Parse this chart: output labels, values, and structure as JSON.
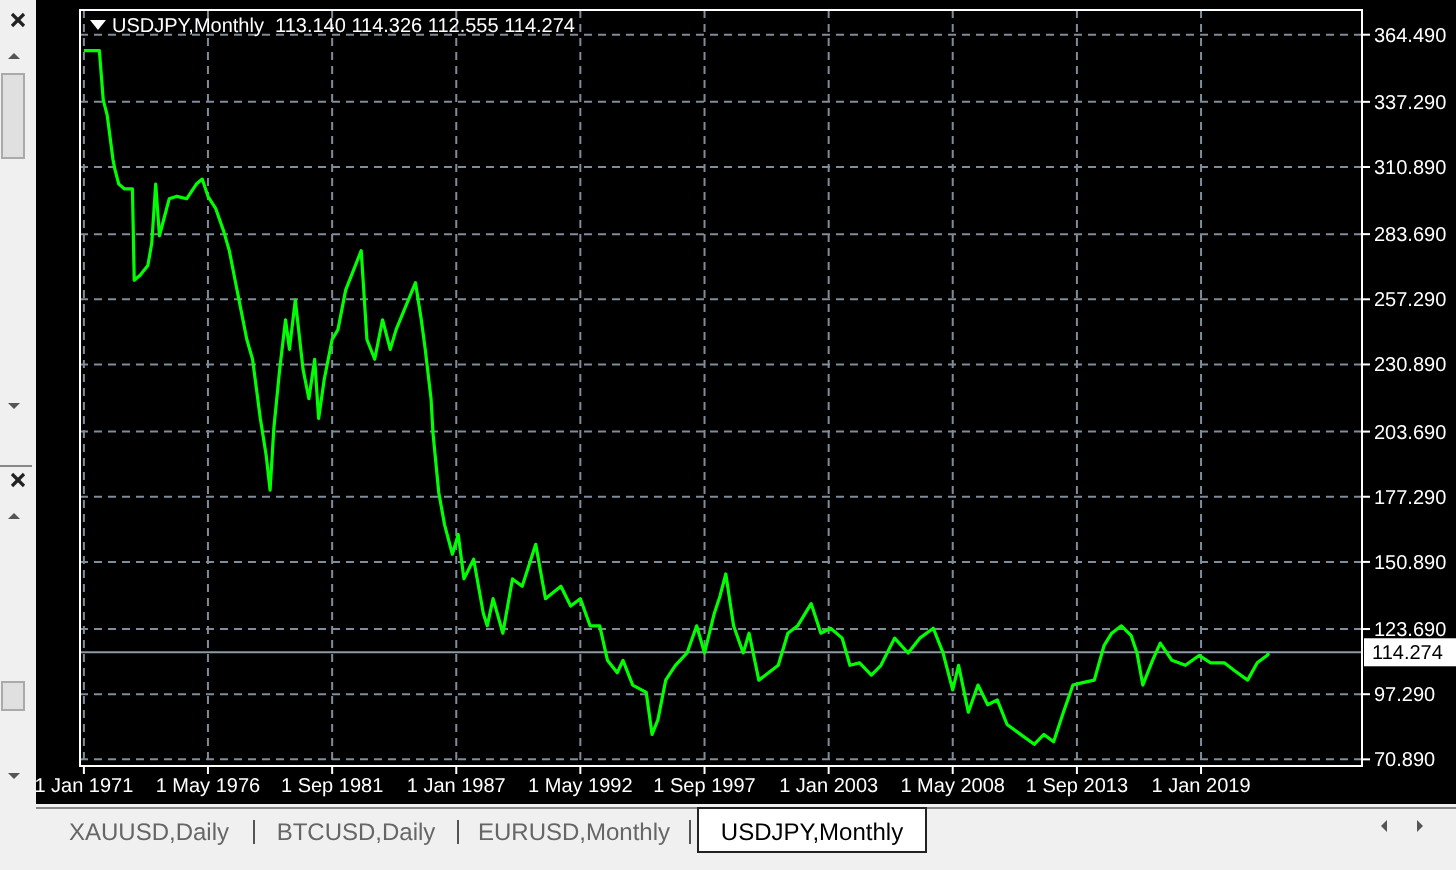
{
  "chart_data": {
    "type": "line",
    "title": "USDJPY,Monthly  113.140 114.326 112.555 114.274",
    "x": [
      "1971-01",
      "1971-09",
      "1971-11",
      "1972-01",
      "1972-02",
      "1972-04",
      "1972-05",
      "1972-07",
      "1972-10",
      "1973-02",
      "1973-03",
      "1973-06",
      "1973-10",
      "1973-12",
      "1974-02",
      "1974-04",
      "1974-06",
      "1974-09",
      "1975-01",
      "1975-06",
      "1975-11",
      "1976-02",
      "1976-05",
      "1976-09",
      "1977-01",
      "1977-04",
      "1977-07",
      "1977-10",
      "1978-01",
      "1978-04",
      "1978-06",
      "1978-08",
      "1978-11",
      "1979-01",
      "1979-03",
      "1979-06",
      "1979-09",
      "1979-11",
      "1980-02",
      "1980-06",
      "1980-09",
      "1980-12",
      "1981-02",
      "1981-05",
      "1981-09",
      "1981-12",
      "1982-04",
      "1982-12",
      "1983-03",
      "1983-07",
      "1983-11",
      "1984-03",
      "1984-06",
      "1985-04",
      "1985-07",
      "1985-09",
      "1985-12",
      "1986-01",
      "1986-04",
      "1986-07",
      "1986-11",
      "1987-02",
      "1987-05",
      "1987-10",
      "1988-03",
      "1988-05",
      "1988-08",
      "1989-01",
      "1989-06",
      "1989-11",
      "1990-06",
      "1990-11",
      "1991-07",
      "1991-12",
      "1992-05",
      "1992-10",
      "1993-03",
      "1993-07",
      "1993-12",
      "1994-03",
      "1994-08",
      "1995-03",
      "1995-06",
      "1995-09",
      "1996-01",
      "1996-06",
      "1996-12",
      "1997-05",
      "1997-09",
      "1998-02",
      "1998-05",
      "1998-08",
      "1998-12",
      "1999-05",
      "1999-08",
      "2000-01",
      "2000-06",
      "2000-11",
      "2001-04",
      "2001-09",
      "2002-04",
      "2002-09",
      "2003-02",
      "2003-08",
      "2003-12",
      "2004-05",
      "2004-11",
      "2005-04",
      "2005-11",
      "2006-06",
      "2006-12",
      "2007-07",
      "2007-12",
      "2008-05",
      "2008-08",
      "2009-01",
      "2009-06",
      "2009-11",
      "2010-04",
      "2010-09",
      "2011-04",
      "2011-11",
      "2012-04",
      "2012-09",
      "2013-02",
      "2013-07",
      "2013-12",
      "2014-06",
      "2014-11",
      "2015-03",
      "2015-08",
      "2016-01",
      "2016-04",
      "2016-07",
      "2016-12",
      "2017-04",
      "2017-10",
      "2018-05",
      "2018-12",
      "2019-06",
      "2020-01",
      "2020-06",
      "2021-01",
      "2021-06",
      "2021-11",
      "2021-12"
    ],
    "series": [
      {
        "color": "#00ff00",
        "values": [
          358,
          358,
          338,
          332,
          326,
          314,
          310,
          304,
          302,
          302,
          265,
          267,
          271,
          280,
          304,
          283,
          289,
          298,
          299,
          298,
          304,
          306,
          299,
          294,
          285,
          277,
          265,
          253,
          241,
          233,
          221,
          209,
          194,
          180,
          205,
          229,
          249,
          237,
          257,
          229,
          217,
          233,
          209,
          225,
          241,
          245,
          261,
          277,
          241,
          233,
          249,
          237,
          245,
          264,
          249,
          237,
          217,
          203,
          179,
          166,
          154,
          162,
          144,
          152,
          130,
          125,
          136,
          122,
          144,
          141,
          158,
          136,
          141,
          133,
          136,
          125,
          125,
          111,
          106,
          111,
          101,
          98,
          81,
          87,
          103,
          109,
          114,
          125,
          114,
          130,
          137,
          146,
          125,
          114,
          122,
          103,
          106,
          109,
          122,
          125,
          134,
          122,
          124,
          120,
          109,
          110,
          105,
          109,
          120,
          114,
          120,
          124,
          114,
          99,
          109,
          90,
          101,
          93,
          95,
          85,
          81,
          77,
          81,
          78,
          90,
          101,
          102,
          103,
          117,
          122,
          125,
          121,
          114,
          101,
          111,
          118,
          111,
          109,
          113,
          110,
          110,
          107,
          103,
          110,
          113,
          114
        ]
      }
    ],
    "xlim": [
      "1970-11",
      "2025-12"
    ],
    "xticks": [
      {
        "value": "1971-01",
        "label": "1 Jan 1971"
      },
      {
        "value": "1976-05",
        "label": "1 May 1976"
      },
      {
        "value": "1981-09",
        "label": "1 Sep 1981"
      },
      {
        "value": "1987-01",
        "label": "1 Jan 1987"
      },
      {
        "value": "1992-05",
        "label": "1 May 1992"
      },
      {
        "value": "1997-09",
        "label": "1 Sep 1997"
      },
      {
        "value": "2003-01",
        "label": "1 Jan 2003"
      },
      {
        "value": "2008-05",
        "label": "1 May 2008"
      },
      {
        "value": "2013-09",
        "label": "1 Sep 2013"
      },
      {
        "value": "2019-01",
        "label": "1 Jan 2019"
      }
    ],
    "ylim": [
      68.2,
      374.5
    ],
    "yticks": [
      {
        "value": 364.49,
        "label": "364.490"
      },
      {
        "value": 337.29,
        "label": "337.290"
      },
      {
        "value": 310.89,
        "label": "310.890"
      },
      {
        "value": 283.69,
        "label": "283.690"
      },
      {
        "value": 257.29,
        "label": "257.290"
      },
      {
        "value": 230.89,
        "label": "230.890"
      },
      {
        "value": 203.69,
        "label": "203.690"
      },
      {
        "value": 177.29,
        "label": "177.290"
      },
      {
        "value": 150.89,
        "label": "150.890"
      },
      {
        "value": 123.69,
        "label": "123.690"
      },
      {
        "value": 97.29,
        "label": "97.290"
      },
      {
        "value": 70.89,
        "label": "70.890"
      }
    ],
    "ref_lines": [
      {
        "axis": "y",
        "value": 114.274,
        "label": "114.274",
        "color": "#8c9aa8"
      }
    ],
    "grid": true,
    "annotations": [
      "XAUUSD,Daily",
      "BTCUSD,Daily",
      "EURUSD,Monthly",
      "USDJPY,Monthly"
    ]
  }
}
